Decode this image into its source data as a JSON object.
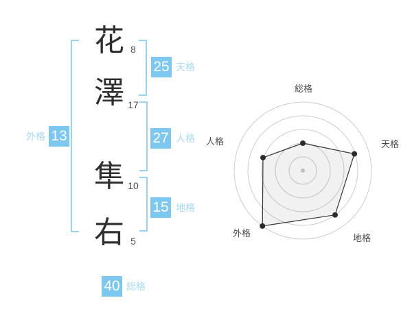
{
  "name": {
    "characters": [
      {
        "char": "花",
        "strokes": "8"
      },
      {
        "char": "澤",
        "strokes": "17"
      },
      {
        "char": "隼",
        "strokes": "10"
      },
      {
        "char": "右",
        "strokes": "5"
      }
    ]
  },
  "kaku": {
    "gaikaku": {
      "label": "外格",
      "value": "13"
    },
    "tenkaku": {
      "label": "天格",
      "value": "25"
    },
    "jinkaku": {
      "label": "人格",
      "value": "27"
    },
    "chikaku": {
      "label": "地格",
      "value": "15"
    },
    "soukaku": {
      "label": "総格",
      "value": "40"
    }
  },
  "colors": {
    "accent_blue": "#7cc8f1",
    "label_blue": "#a5daf6",
    "bracket_blue": "#98d3f3",
    "kanji_text": "#2f2f2f",
    "stroke_text": "#4f4f4f",
    "radar_label_text": "#4c4c4c",
    "radar_grid": "#cdcdcd",
    "radar_line": "#333333",
    "radar_dot": "#2b2b2b",
    "radar_center_dot": "#bfbfbf",
    "radar_fill": "rgba(0,0,0,0.055)"
  },
  "chart_data": {
    "type": "radar",
    "axes": [
      "総格",
      "天格",
      "地格",
      "外格",
      "人格"
    ],
    "values": [
      40,
      79,
      80,
      100,
      61
    ],
    "max": 100,
    "rings": 5,
    "start_angle_deg": 90,
    "direction": "clockwise",
    "grid": "concentric-circles",
    "legend": "none",
    "center_dot": true
  }
}
